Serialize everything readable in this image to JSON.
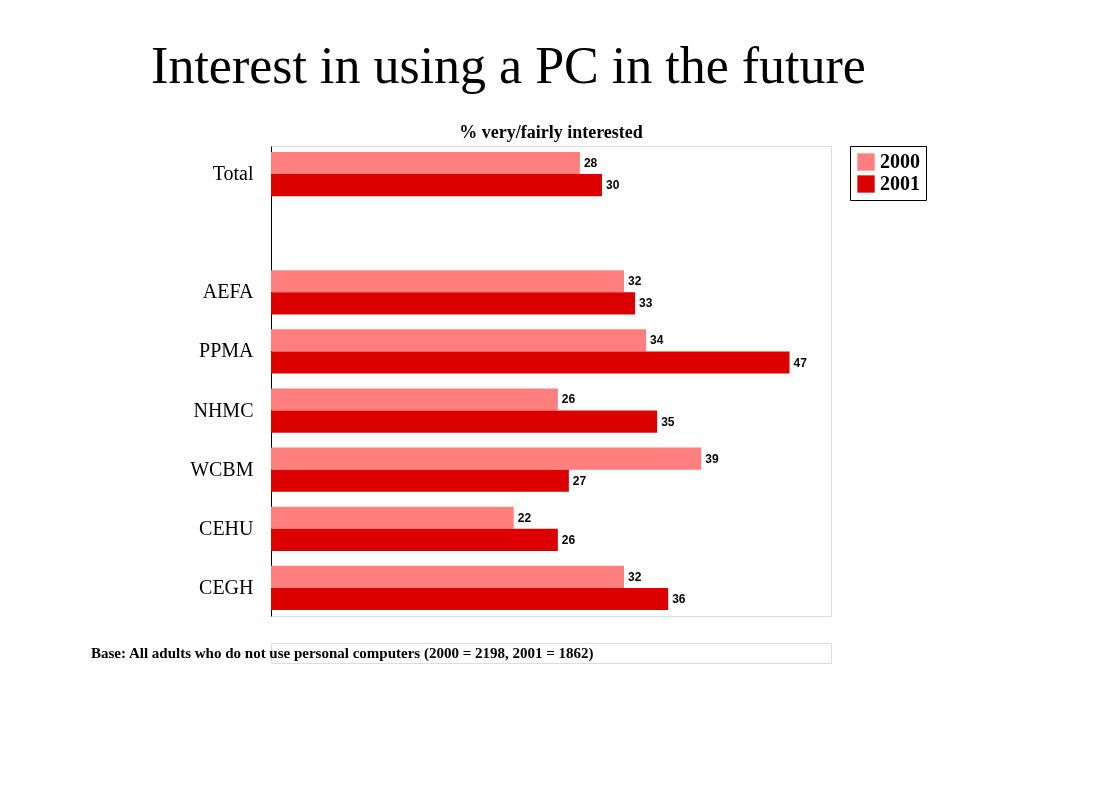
{
  "chart_data": {
    "type": "bar",
    "orientation": "horizontal",
    "title": "Interest in using a PC in the future",
    "subtitle": "% very/fairly interested",
    "categories": [
      "Total",
      null,
      "AEFA",
      "PPMA",
      "NHMC",
      "WCBM",
      "CEHU",
      "CEGH"
    ],
    "series": [
      {
        "name": "2000",
        "color": "#ff7f7f",
        "values": [
          28,
          null,
          32,
          34,
          26,
          39,
          22,
          32
        ]
      },
      {
        "name": "2001",
        "color": "#dd0000",
        "values": [
          30,
          null,
          33,
          47,
          35,
          27,
          26,
          36
        ]
      }
    ],
    "data_labels": true,
    "legend": "right",
    "grid": false,
    "annotations": [
      "Base:  All adults who do not use personal computers (2000 = 2198, 2001 = 1862)"
    ]
  }
}
